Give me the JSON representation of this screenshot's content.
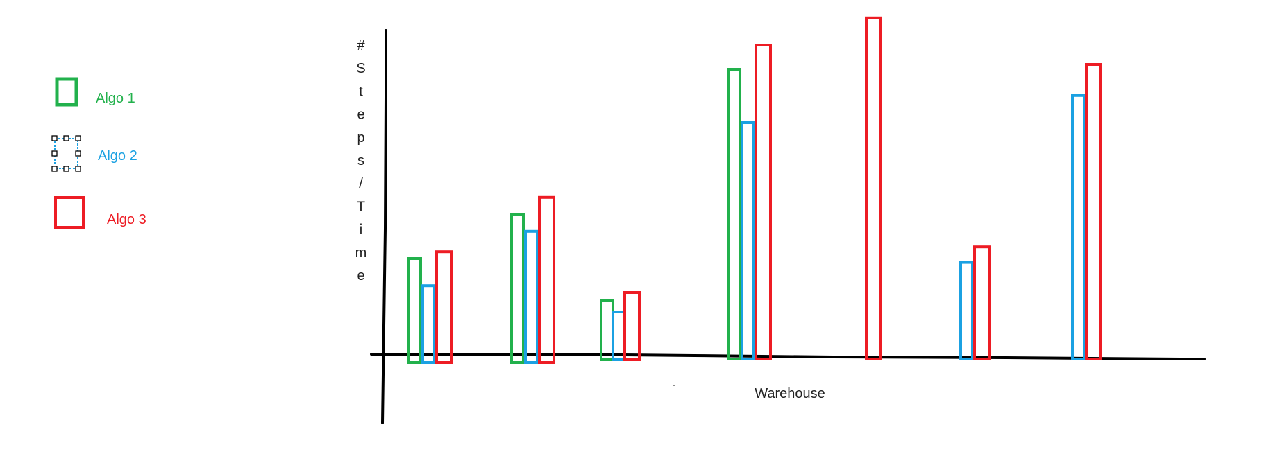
{
  "chart_data": {
    "type": "bar",
    "title": "",
    "xlabel": "Warehouse",
    "ylabel": "#Steps/Time",
    "grid": false,
    "legend_position": "left",
    "categories": [
      "",
      "",
      "",
      "",
      "",
      "",
      ""
    ],
    "series": [
      {
        "name": "Algo 1",
        "color": "#22b14c",
        "values": [
          100,
          145,
          57,
          295,
          null,
          null,
          null
        ]
      },
      {
        "name": "Algo 2",
        "color": "#1ba1e2",
        "values": [
          72,
          128,
          45,
          240,
          null,
          96,
          268
        ]
      },
      {
        "name": "Algo 3",
        "color": "#ed1c24",
        "values": [
          107,
          163,
          65,
          320,
          348,
          112,
          300
        ]
      }
    ],
    "ylim": [
      -70,
      348
    ]
  },
  "legend": [
    {
      "label": "Algo 1",
      "color": "#22b14c",
      "icon": "outlined-square-icon"
    },
    {
      "label": "Algo 2",
      "color": "#1ba1e2",
      "icon": "selected-square-icon"
    },
    {
      "label": "Algo 3",
      "color": "#ed1c24",
      "icon": "outlined-square-icon"
    }
  ]
}
